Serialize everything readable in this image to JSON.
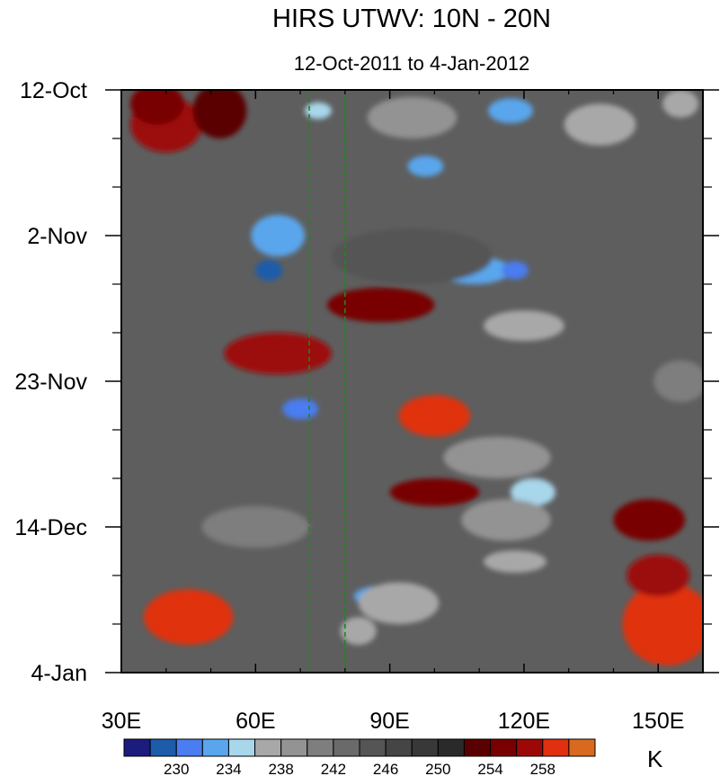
{
  "chart_data": {
    "type": "heatmap",
    "title": "HIRS UTWV: 10N - 20N",
    "subtitle": "12-Oct-2011 to 4-Jan-2012",
    "xlabel": "",
    "ylabel": "",
    "x_range": [
      30,
      160
    ],
    "x_ticks": [
      {
        "value": 30,
        "label": "30E"
      },
      {
        "value": 60,
        "label": "60E"
      },
      {
        "value": 90,
        "label": "90E"
      },
      {
        "value": 120,
        "label": "120E"
      },
      {
        "value": 150,
        "label": "150E"
      }
    ],
    "y_range_days": [
      0,
      84
    ],
    "y_ticks": [
      {
        "day": 0,
        "label": "12-Oct"
      },
      {
        "day": 21,
        "label": "2-Nov"
      },
      {
        "day": 42,
        "label": "23-Nov"
      },
      {
        "day": 63,
        "label": "14-Dec"
      },
      {
        "day": 84,
        "label": "4-Jan"
      }
    ],
    "reference_lines": [
      72,
      80
    ],
    "colorbar": {
      "unit": "K",
      "levels": [
        228,
        230,
        232,
        234,
        236,
        238,
        240,
        242,
        244,
        246,
        248,
        250,
        252,
        254,
        256,
        258
      ],
      "tick_labels": [
        {
          "level": 230,
          "label": "230"
        },
        {
          "level": 234,
          "label": "234"
        },
        {
          "level": 238,
          "label": "238"
        },
        {
          "level": 242,
          "label": "242"
        },
        {
          "level": 246,
          "label": "246"
        },
        {
          "level": 250,
          "label": "250"
        },
        {
          "level": 254,
          "label": "254"
        },
        {
          "level": 258,
          "label": "258"
        }
      ],
      "colors": [
        "#1c1c7c",
        "#1d5caa",
        "#4a7df0",
        "#5aa6ec",
        "#a8d6ea",
        "#a8a8a8",
        "#939393",
        "#7e7e7e",
        "#6a6a6a",
        "#555555",
        "#454545",
        "#383838",
        "#2a2a2a",
        "#5a0000",
        "#780000",
        "#9c0808",
        "#e03010",
        "#d86a20"
      ]
    },
    "features": [
      {
        "lon": 40,
        "day": 5,
        "value": 256,
        "rx": 8,
        "ry": 4
      },
      {
        "lon": 38,
        "day": 2,
        "value": 255,
        "rx": 6,
        "ry": 3
      },
      {
        "lon": 52,
        "day": 3,
        "value": 253,
        "rx": 6,
        "ry": 4
      },
      {
        "lon": 74,
        "day": 3,
        "value": 234,
        "rx": 3,
        "ry": 1.2
      },
      {
        "lon": 98,
        "day": 11,
        "value": 233,
        "rx": 4,
        "ry": 1.5
      },
      {
        "lon": 117,
        "day": 3,
        "value": 232,
        "rx": 5,
        "ry": 1.8
      },
      {
        "lon": 95,
        "day": 4,
        "value": 238,
        "rx": 10,
        "ry": 3
      },
      {
        "lon": 137,
        "day": 5,
        "value": 237,
        "rx": 8,
        "ry": 3
      },
      {
        "lon": 155,
        "day": 2,
        "value": 236,
        "rx": 4,
        "ry": 2
      },
      {
        "lon": 65,
        "day": 21,
        "value": 232,
        "rx": 6,
        "ry": 3
      },
      {
        "lon": 63,
        "day": 26,
        "value": 229,
        "rx": 3,
        "ry": 1.5
      },
      {
        "lon": 109,
        "day": 26,
        "value": 233,
        "rx": 8,
        "ry": 2
      },
      {
        "lon": 118,
        "day": 26,
        "value": 231,
        "rx": 3,
        "ry": 1.3
      },
      {
        "lon": 120,
        "day": 34,
        "value": 236,
        "rx": 9,
        "ry": 2.2
      },
      {
        "lon": 95,
        "day": 24,
        "value": 244,
        "rx": 18,
        "ry": 4
      },
      {
        "lon": 70,
        "day": 46,
        "value": 231,
        "rx": 4,
        "ry": 1.5
      },
      {
        "lon": 100,
        "day": 47,
        "value": 258,
        "rx": 8,
        "ry": 3
      },
      {
        "lon": 100,
        "day": 47,
        "value": 260,
        "rx": 4,
        "ry": 1.6
      },
      {
        "lon": 114,
        "day": 53,
        "value": 238,
        "rx": 12,
        "ry": 3
      },
      {
        "lon": 122,
        "day": 58,
        "value": 234,
        "rx": 5,
        "ry": 2
      },
      {
        "lon": 116,
        "day": 62,
        "value": 239,
        "rx": 10,
        "ry": 3
      },
      {
        "lon": 118,
        "day": 68,
        "value": 236,
        "rx": 7,
        "ry": 1.6
      },
      {
        "lon": 88,
        "day": 73,
        "value": 233,
        "rx": 6,
        "ry": 1.5
      },
      {
        "lon": 92,
        "day": 74,
        "value": 237,
        "rx": 9,
        "ry": 3
      },
      {
        "lon": 83,
        "day": 78,
        "value": 236,
        "rx": 4,
        "ry": 2
      },
      {
        "lon": 45,
        "day": 76,
        "value": 258,
        "rx": 10,
        "ry": 4
      },
      {
        "lon": 45,
        "day": 77,
        "value": 260,
        "rx": 3,
        "ry": 1.2
      },
      {
        "lon": 152,
        "day": 77,
        "value": 260,
        "rx": 10,
        "ry": 6
      },
      {
        "lon": 150,
        "day": 70,
        "value": 256,
        "rx": 7,
        "ry": 3
      },
      {
        "lon": 65,
        "day": 38,
        "value": 256,
        "rx": 12,
        "ry": 3
      },
      {
        "lon": 88,
        "day": 31,
        "value": 255,
        "rx": 12,
        "ry": 2.5
      },
      {
        "lon": 100,
        "day": 58,
        "value": 254,
        "rx": 10,
        "ry": 2
      },
      {
        "lon": 148,
        "day": 62,
        "value": 255,
        "rx": 8,
        "ry": 3
      },
      {
        "lon": 155,
        "day": 42,
        "value": 240,
        "rx": 6,
        "ry": 3
      },
      {
        "lon": 60,
        "day": 63,
        "value": 240,
        "rx": 12,
        "ry": 3
      }
    ]
  }
}
